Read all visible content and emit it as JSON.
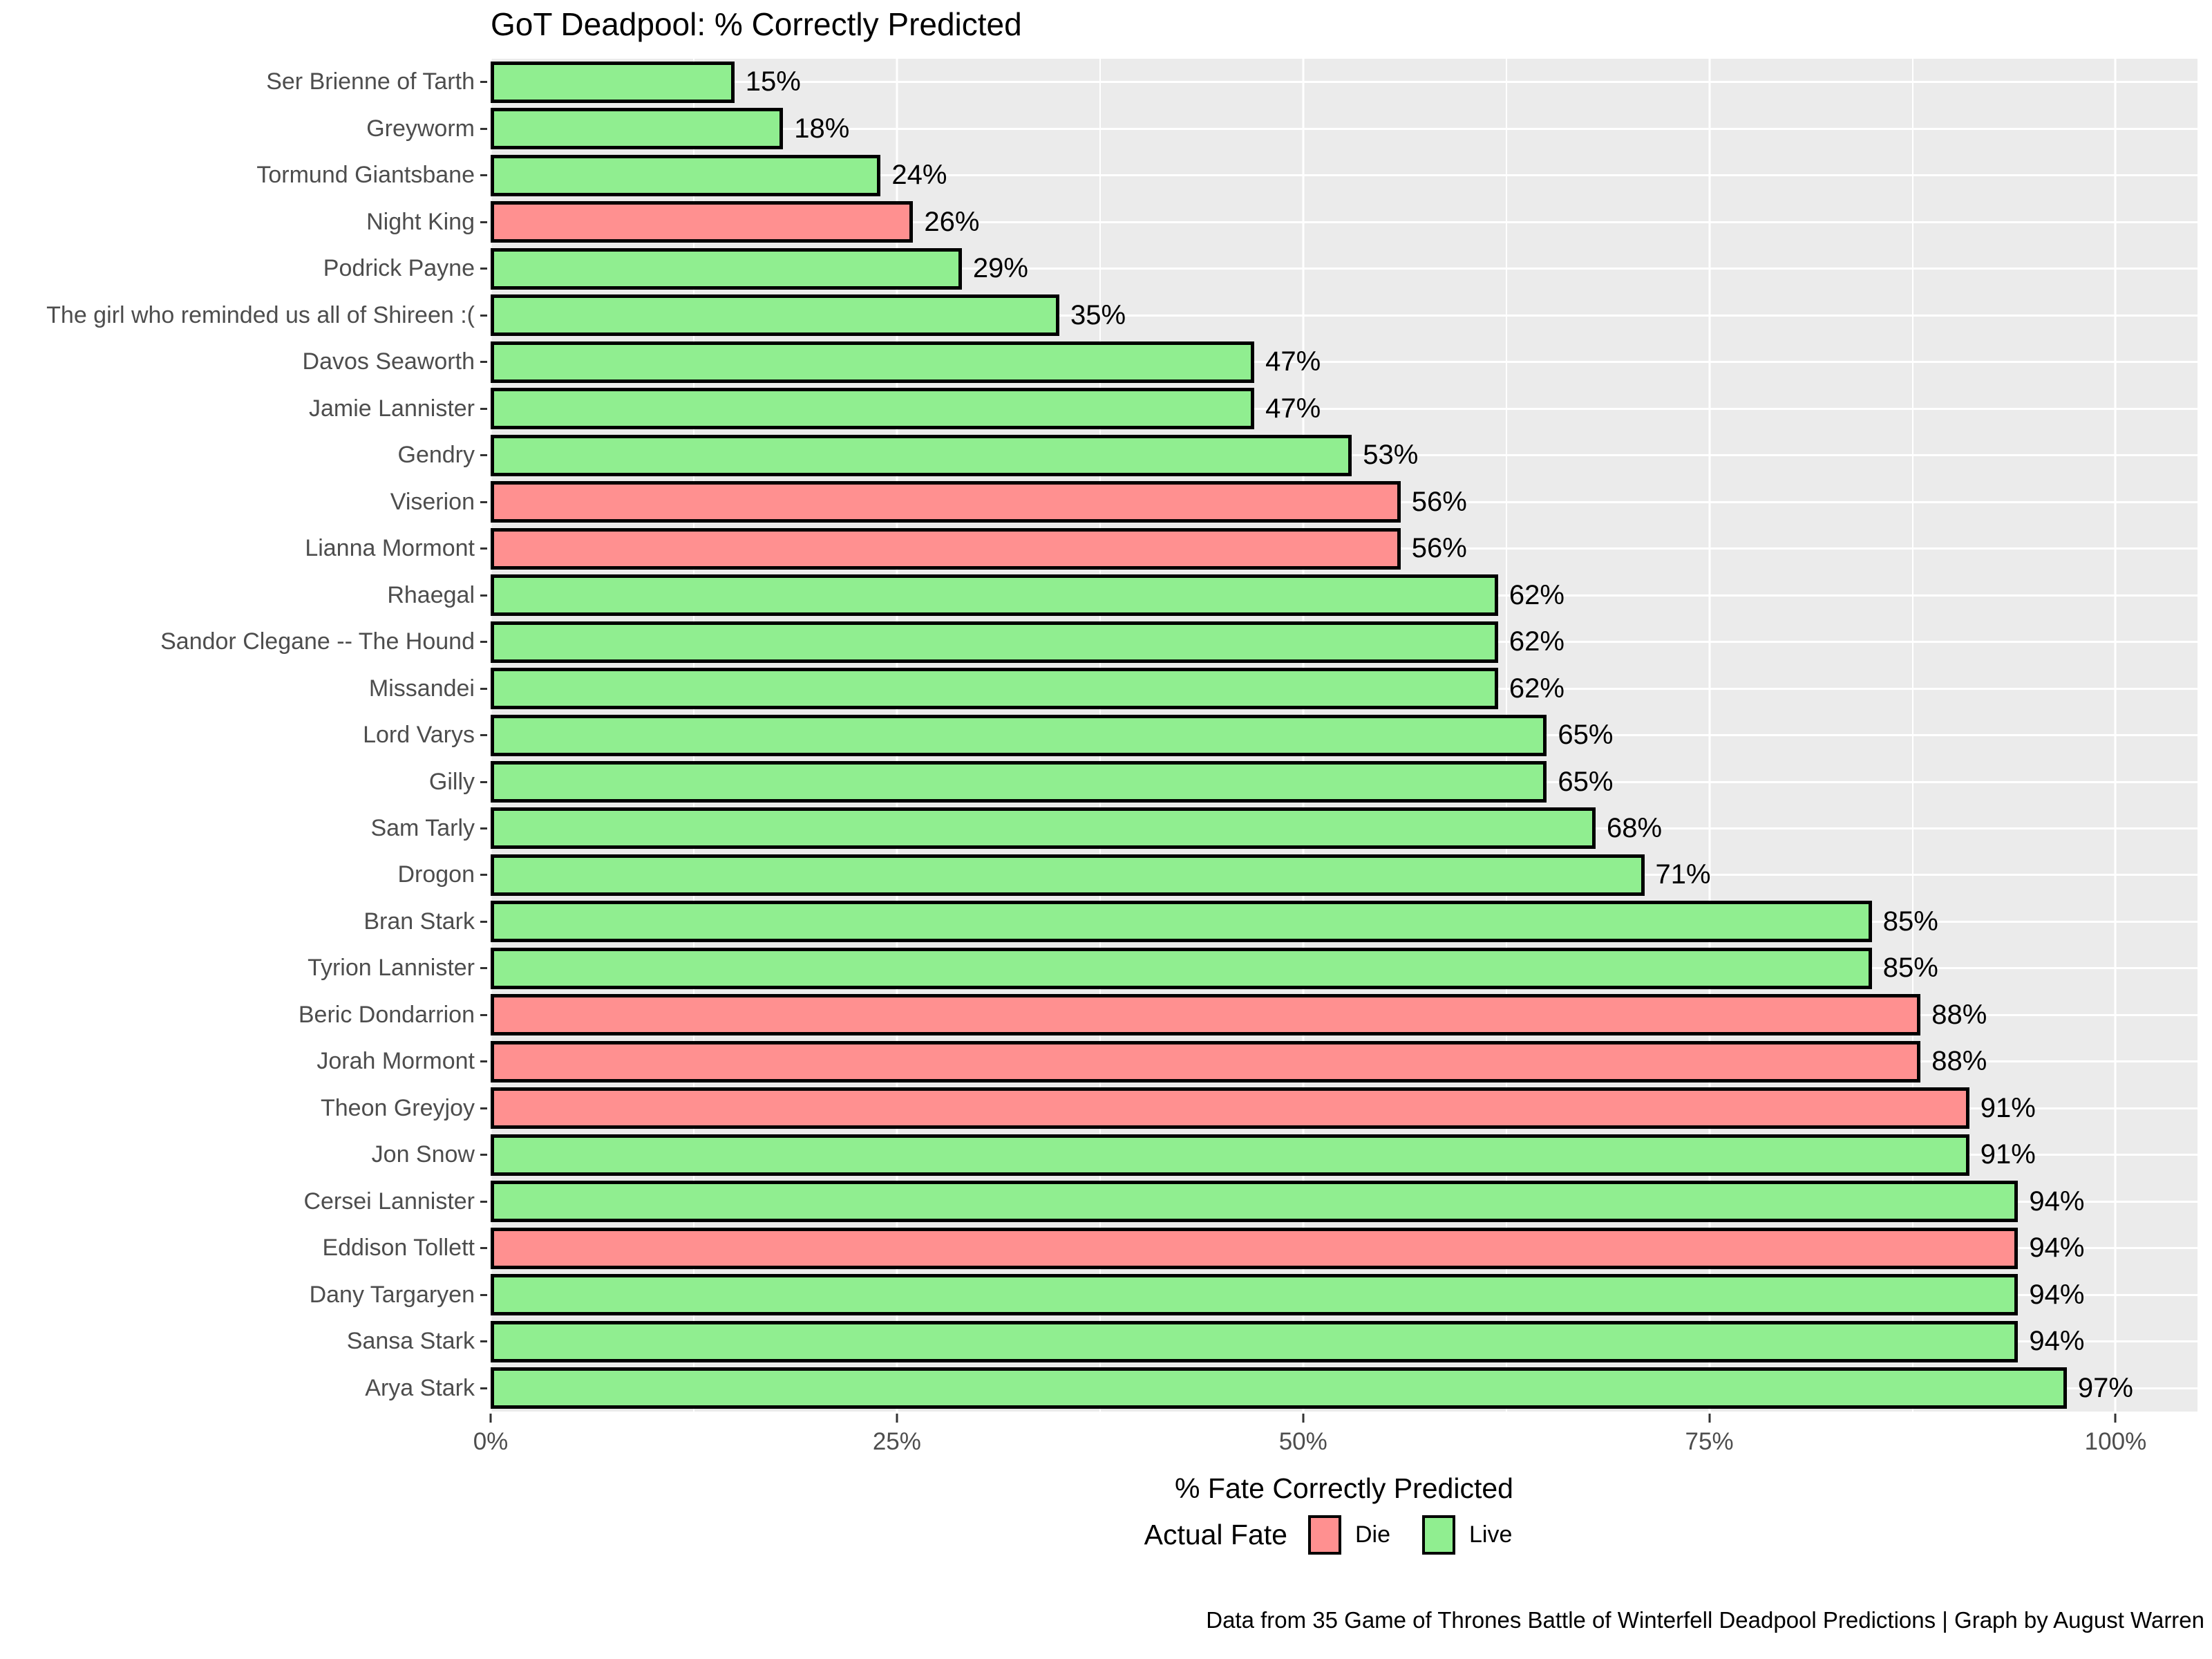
{
  "caption": "Data from 35 Game of Thrones Battle of Winterfell Deadpool Predictions | Graph by August Warren",
  "colors": {
    "panel_bg": "#EBEBEB",
    "gridline": "#FFFFFF",
    "axis_text": "#4D4D4D",
    "bar_border": "#000000",
    "fate": {
      "Die": "#FF9090",
      "Live": "#90EE90"
    }
  },
  "chart_data": {
    "type": "bar",
    "orientation": "horizontal",
    "title": "GoT Deadpool: % Correctly Predicted",
    "xlabel": "% Fate Correctly Predicted",
    "ylabel": "",
    "xlim": [
      0,
      105
    ],
    "grid": true,
    "x_ticks": [
      "0%",
      "25%",
      "50%",
      "75%",
      "100%"
    ],
    "x_tick_values": [
      0,
      25,
      50,
      75,
      100
    ],
    "x_minor_values": [
      12.5,
      37.5,
      62.5,
      87.5
    ],
    "legend": {
      "title": "Actual Fate",
      "position": "bottom",
      "entries": [
        {
          "label": "Die",
          "color": "#FF9090"
        },
        {
          "label": "Live",
          "color": "#90EE90"
        }
      ]
    },
    "bars": [
      {
        "name": "Ser Brienne of Tarth",
        "value": 15,
        "label": "15%",
        "fate": "Live"
      },
      {
        "name": "Greyworm",
        "value": 18,
        "label": "18%",
        "fate": "Live"
      },
      {
        "name": "Tormund Giantsbane",
        "value": 24,
        "label": "24%",
        "fate": "Live"
      },
      {
        "name": "Night King",
        "value": 26,
        "label": "26%",
        "fate": "Die"
      },
      {
        "name": "Podrick Payne",
        "value": 29,
        "label": "29%",
        "fate": "Live"
      },
      {
        "name": "The girl who reminded us all of Shireen :(",
        "value": 35,
        "label": "35%",
        "fate": "Live"
      },
      {
        "name": "Davos Seaworth",
        "value": 47,
        "label": "47%",
        "fate": "Live"
      },
      {
        "name": "Jamie Lannister",
        "value": 47,
        "label": "47%",
        "fate": "Live"
      },
      {
        "name": "Gendry",
        "value": 53,
        "label": "53%",
        "fate": "Live"
      },
      {
        "name": "Viserion",
        "value": 56,
        "label": "56%",
        "fate": "Die"
      },
      {
        "name": "Lianna Mormont",
        "value": 56,
        "label": "56%",
        "fate": "Die"
      },
      {
        "name": "Rhaegal",
        "value": 62,
        "label": "62%",
        "fate": "Live"
      },
      {
        "name": "Sandor Clegane -- The Hound",
        "value": 62,
        "label": "62%",
        "fate": "Live"
      },
      {
        "name": "Missandei",
        "value": 62,
        "label": "62%",
        "fate": "Live"
      },
      {
        "name": "Lord Varys",
        "value": 65,
        "label": "65%",
        "fate": "Live"
      },
      {
        "name": "Gilly",
        "value": 65,
        "label": "65%",
        "fate": "Live"
      },
      {
        "name": "Sam Tarly",
        "value": 68,
        "label": "68%",
        "fate": "Live"
      },
      {
        "name": "Drogon",
        "value": 71,
        "label": "71%",
        "fate": "Live"
      },
      {
        "name": "Bran Stark",
        "value": 85,
        "label": "85%",
        "fate": "Live"
      },
      {
        "name": "Tyrion Lannister",
        "value": 85,
        "label": "85%",
        "fate": "Live"
      },
      {
        "name": "Beric Dondarrion",
        "value": 88,
        "label": "88%",
        "fate": "Die"
      },
      {
        "name": "Jorah Mormont",
        "value": 88,
        "label": "88%",
        "fate": "Die"
      },
      {
        "name": "Theon Greyjoy",
        "value": 91,
        "label": "91%",
        "fate": "Die"
      },
      {
        "name": "Jon Snow",
        "value": 91,
        "label": "91%",
        "fate": "Live"
      },
      {
        "name": "Cersei Lannister",
        "value": 94,
        "label": "94%",
        "fate": "Live"
      },
      {
        "name": "Eddison Tollett",
        "value": 94,
        "label": "94%",
        "fate": "Die"
      },
      {
        "name": "Dany Targaryen",
        "value": 94,
        "label": "94%",
        "fate": "Live"
      },
      {
        "name": "Sansa Stark",
        "value": 94,
        "label": "94%",
        "fate": "Live"
      },
      {
        "name": "Arya Stark",
        "value": 97,
        "label": "97%",
        "fate": "Live"
      }
    ]
  }
}
